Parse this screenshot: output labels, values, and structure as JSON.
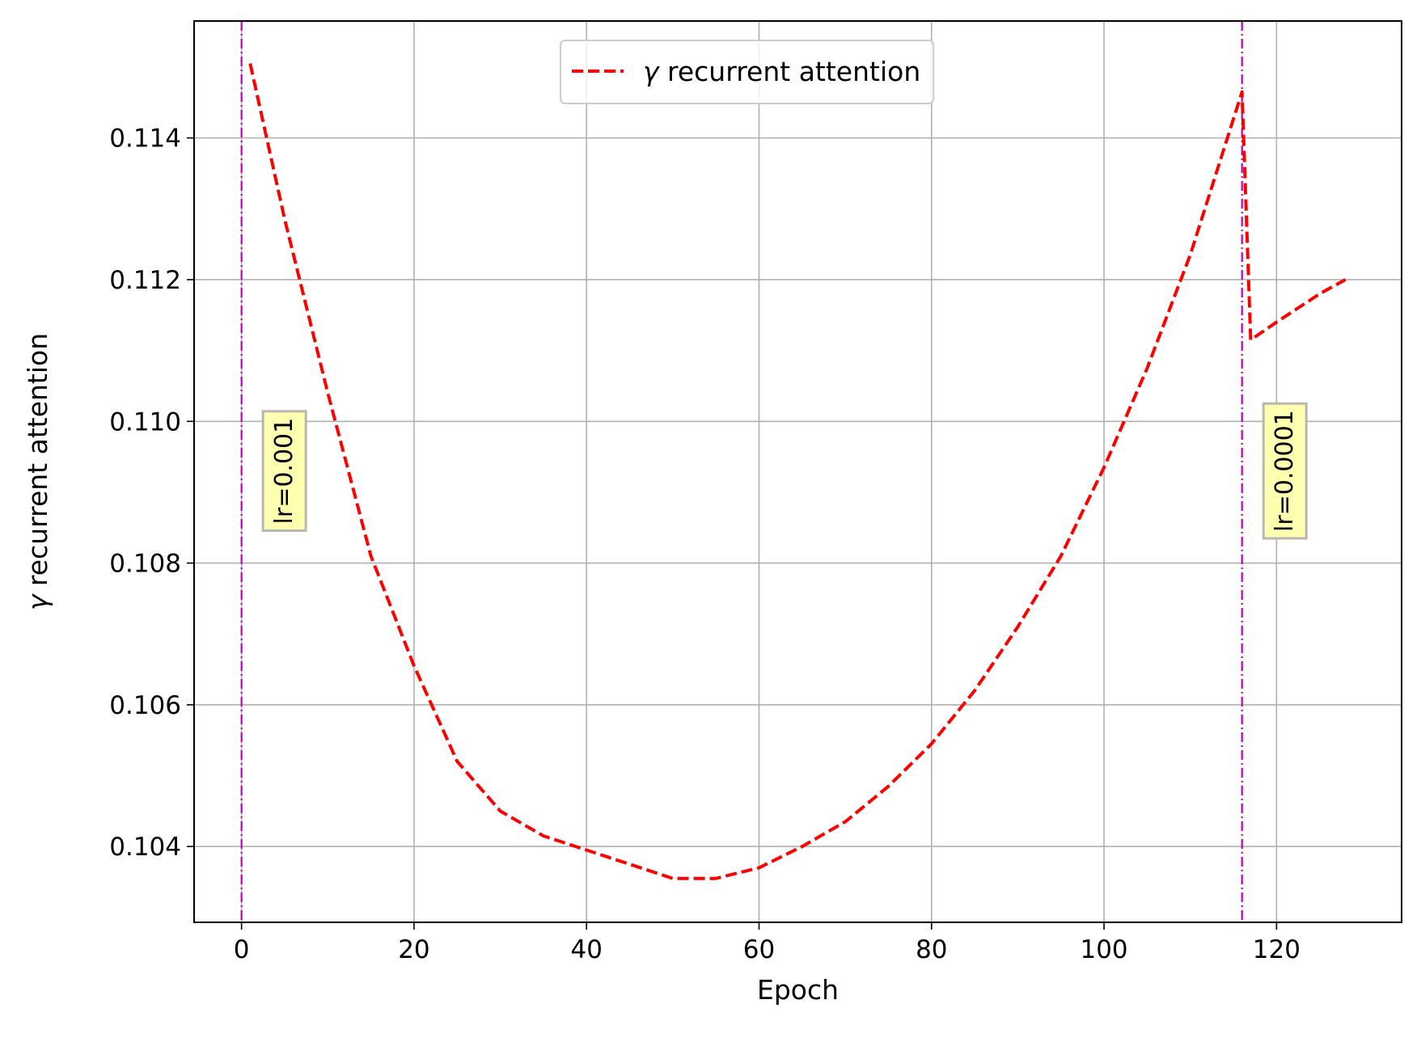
{
  "chart_data": {
    "type": "line",
    "xlabel": "Epoch",
    "ylabel_var": "γ",
    "ylabel_rest": " recurrent attention",
    "xlim": [
      -5.5,
      134.5
    ],
    "ylim": [
      0.10293,
      0.11565
    ],
    "xticks": [
      0,
      20,
      40,
      60,
      80,
      100,
      120
    ],
    "xtick_labels": [
      "0",
      "20",
      "40",
      "60",
      "80",
      "100",
      "120"
    ],
    "yticks": [
      0.104,
      0.106,
      0.108,
      0.11,
      0.112,
      0.114
    ],
    "ytick_labels": [
      "0.104",
      "0.106",
      "0.108",
      "0.110",
      "0.112",
      "0.114"
    ],
    "grid": true,
    "legend_position": "top-center",
    "series": [
      {
        "name_var": "γ",
        "name_rest": " recurrent attention",
        "color": "#ff0000",
        "style": "dashed",
        "x": [
          1,
          5,
          10,
          15,
          20,
          25,
          30,
          35,
          40,
          45,
          50,
          55,
          60,
          65,
          70,
          75,
          80,
          85,
          90,
          95,
          100,
          105,
          110,
          116,
          117,
          120,
          125,
          128
        ],
        "y": [
          0.11505,
          0.11285,
          0.1104,
          0.1081,
          0.10655,
          0.1052,
          0.1045,
          0.10415,
          0.10395,
          0.10375,
          0.10355,
          0.10355,
          0.1037,
          0.104,
          0.10435,
          0.10485,
          0.10545,
          0.1062,
          0.1071,
          0.1081,
          0.10935,
          0.11075,
          0.11235,
          0.11465,
          0.11115,
          0.1114,
          0.1118,
          0.112
        ]
      }
    ],
    "vlines": [
      {
        "x": 0,
        "color": "#bf00bf",
        "label": "lr=0.001",
        "label_y": 0.1093
      },
      {
        "x": 116,
        "color": "#bf00bf",
        "label": "lr=0.0001",
        "label_y": 0.1093
      }
    ],
    "annotation_box_color": "#ffffb0"
  }
}
